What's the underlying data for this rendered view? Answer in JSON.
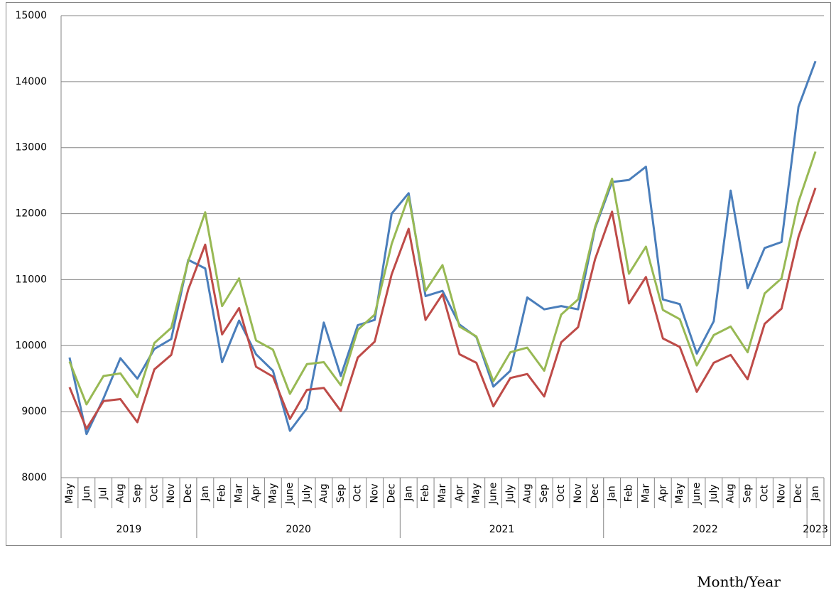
{
  "chart_data": {
    "type": "line",
    "x_label": "Month/Year",
    "categories": [
      "May",
      "Jun",
      "Jul",
      "Aug",
      "Sep",
      "Oct",
      "Nov",
      "Dec",
      "Jan",
      "Feb",
      "Mar",
      "Apr",
      "May",
      "June",
      "July",
      "Aug",
      "Sep",
      "Oct",
      "Nov",
      "Dec",
      "Jan",
      "Feb",
      "Mar",
      "Apr",
      "May",
      "June",
      "July",
      "Aug",
      "Sep",
      "Oct",
      "Nov",
      "Dec",
      "Jan",
      "Feb",
      "Mar",
      "Apr",
      "May",
      "June",
      "July",
      "Aug",
      "Sep",
      "Oct",
      "Nov",
      "Dec",
      "Jan"
    ],
    "year_groups": [
      {
        "label": "2019",
        "months": 8
      },
      {
        "label": "2020",
        "months": 12
      },
      {
        "label": "2021",
        "months": 12
      },
      {
        "label": "2022",
        "months": 12
      },
      {
        "label": "2023",
        "months": 1
      }
    ],
    "series": [
      {
        "color": "#4a7ebb",
        "values": [
          9820,
          8660,
          9200,
          9810,
          9500,
          9950,
          10100,
          11300,
          11170,
          9750,
          10380,
          9870,
          9620,
          8710,
          9050,
          10350,
          9540,
          10310,
          10390,
          12000,
          12310,
          10750,
          10830,
          10320,
          10130,
          9380,
          9620,
          10730,
          10550,
          10600,
          10550,
          11780,
          12480,
          12510,
          12710,
          10700,
          10630,
          9880,
          10370,
          12350,
          10870,
          11480,
          11570,
          13620,
          14310
        ]
      },
      {
        "color": "#be4b48",
        "values": [
          9370,
          8740,
          9160,
          9190,
          8840,
          9640,
          9860,
          10850,
          11530,
          10170,
          10570,
          9680,
          9530,
          8890,
          9330,
          9360,
          9010,
          9820,
          10060,
          11080,
          11770,
          10390,
          10780,
          9870,
          9740,
          9080,
          9510,
          9570,
          9230,
          10050,
          10280,
          11310,
          12030,
          10640,
          11040,
          10110,
          9980,
          9300,
          9740,
          9860,
          9490,
          10330,
          10560,
          11650,
          12390
        ]
      },
      {
        "color": "#98b954",
        "values": [
          9760,
          9110,
          9540,
          9580,
          9220,
          10040,
          10270,
          11280,
          12020,
          10600,
          11020,
          10080,
          9940,
          9270,
          9720,
          9750,
          9400,
          10240,
          10470,
          11540,
          12260,
          10830,
          11220,
          10290,
          10140,
          9460,
          9900,
          9970,
          9620,
          10470,
          10700,
          11800,
          12530,
          11090,
          11500,
          10540,
          10400,
          9700,
          10160,
          10290,
          9900,
          10790,
          11020,
          12180,
          12940
        ]
      }
    ],
    "ylim": [
      8000,
      15000
    ],
    "yticks": [
      8000,
      9000,
      10000,
      11000,
      12000,
      13000,
      14000,
      15000
    ],
    "grid": true
  }
}
